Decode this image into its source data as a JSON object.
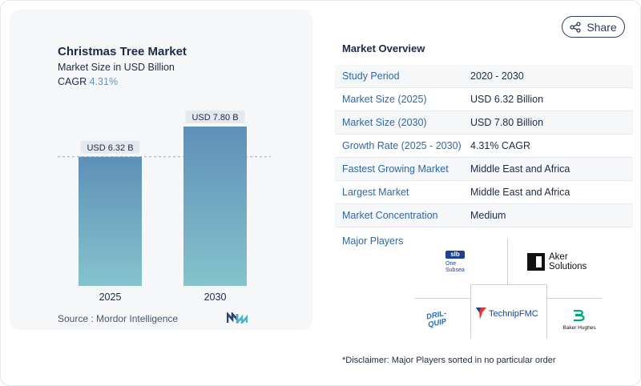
{
  "share": {
    "label": "Share",
    "icon": "share-icon"
  },
  "chart": {
    "title": "Christmas Tree Market",
    "subtitle": "Market Size in USD Billion",
    "cagr_label": "CAGR",
    "cagr_value": "4.31%",
    "source": "Source :  Mordor Intelligence"
  },
  "chart_data": {
    "type": "bar",
    "title": "Christmas Tree Market",
    "subtitle": "Market Size in USD Billion",
    "categories": [
      "2025",
      "2030"
    ],
    "values": [
      6.32,
      7.8
    ],
    "data_labels": [
      "USD 6.32 B",
      "USD 7.80 B"
    ],
    "xlabel": "",
    "ylabel": "",
    "ylim": [
      0,
      7.8
    ],
    "grid": false,
    "reference_line": {
      "value": 6.32,
      "style": "dashed"
    },
    "colors": {
      "bar_top": "#5e90b8",
      "bar_bottom": "#86c3cc",
      "label_bg": "#e4e8ef"
    }
  },
  "overview": {
    "title": "Market Overview",
    "rows": [
      {
        "label": "Study Period",
        "value": "2020 - 2030"
      },
      {
        "label": "Market Size (2025)",
        "value": "USD 6.32 Billion"
      },
      {
        "label": "Market Size (2030)",
        "value": "USD 7.80 Billion"
      },
      {
        "label": "Growth Rate (2025 - 2030)",
        "value": "4.31% CAGR"
      },
      {
        "label": "Fastest Growing Market",
        "value": "Middle East and Africa"
      },
      {
        "label": "Largest Market",
        "value": "Middle East and Africa"
      },
      {
        "label": "Market Concentration",
        "value": "Medium"
      }
    ],
    "players_label": "Major Players",
    "players": {
      "slb": {
        "line1": "slb",
        "line2": "One",
        "line3": "Subsea"
      },
      "aker": {
        "line1": "Aker",
        "line2": "Solutions"
      },
      "drilquip": {
        "text": "DRIL-QUIP"
      },
      "technip": {
        "text": "TechnipFMC"
      },
      "baker": {
        "text": "Baker Hughes"
      }
    },
    "disclaimer": "*Disclaimer: Major Players sorted in no particular order"
  },
  "colors": {
    "accent": "#2f68a3",
    "text": "#1d2b45",
    "cagr": "#5d95c4"
  }
}
